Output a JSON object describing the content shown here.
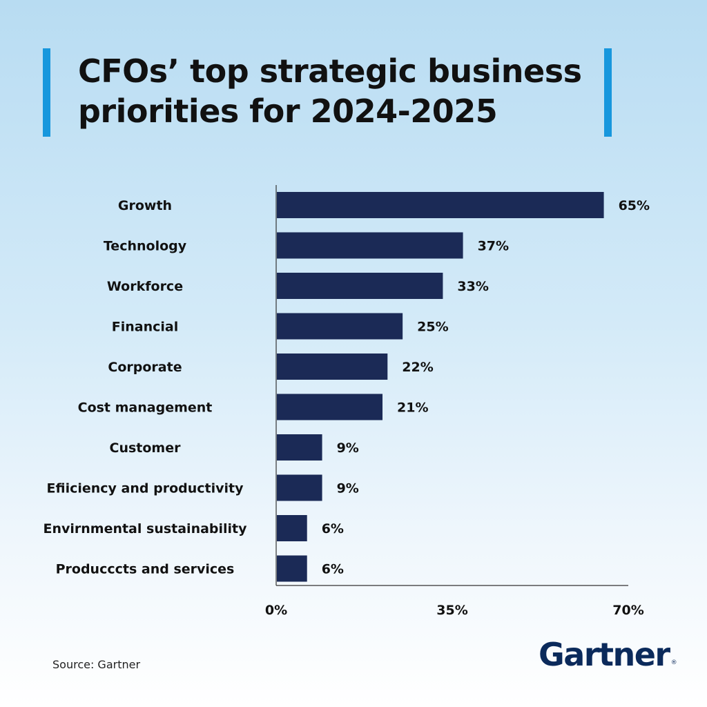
{
  "title": "CFOs’ top strategic business priorities for 2024-2025",
  "source": "Source: Gartner",
  "logo": {
    "text": "Gartner",
    "mark": "®"
  },
  "colors": {
    "bar": "#1b2a56",
    "accent": "#1797dd",
    "logo": "#0b2a5b"
  },
  "chart_data": {
    "type": "bar",
    "orientation": "horizontal",
    "categories": [
      "Growth",
      "Technology",
      "Workforce",
      "Financial",
      "Corporate",
      "Cost management",
      "Customer",
      "Efiiciency and productivity",
      "Envirnmental sustainability",
      "Producccts and services"
    ],
    "values": [
      65,
      37,
      33,
      25,
      22,
      21,
      9,
      9,
      6,
      6
    ],
    "value_labels": [
      "65%",
      "37%",
      "33%",
      "25%",
      "22%",
      "21%",
      "9%",
      "9%",
      "6%",
      "6%"
    ],
    "xlim": [
      0,
      70
    ],
    "ticks": [
      0,
      35,
      70
    ],
    "tick_labels": [
      "0%",
      "35%",
      "70%"
    ],
    "grid": false,
    "legend": "none"
  }
}
